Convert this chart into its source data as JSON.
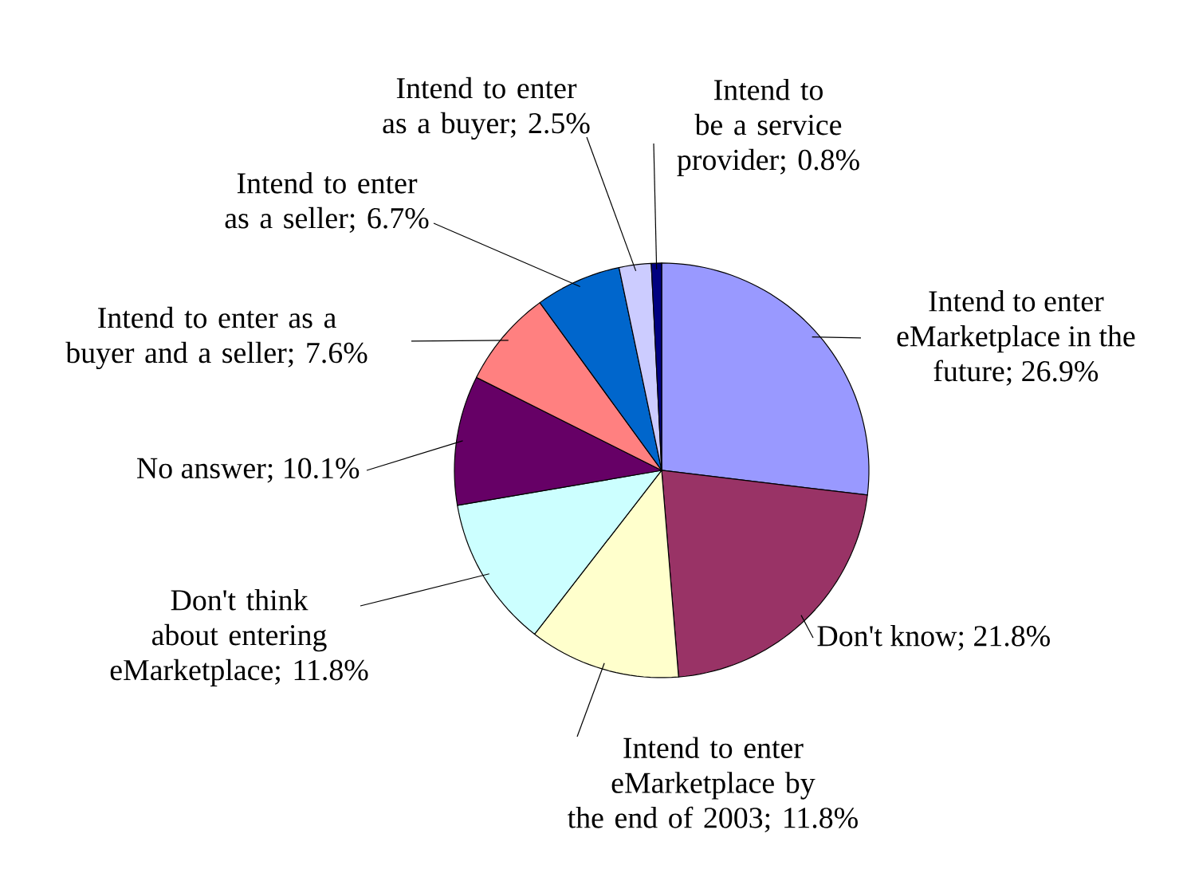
{
  "chart_data": {
    "type": "pie",
    "categories": [
      "Intend to enter eMarketplace in the future; 26.9%",
      "Don't know; 21.8%",
      "Intend to enter eMarketplace by the end of 2003; 11.8%",
      "Don't think about entering eMarketplace; 11.8%",
      "No answer; 10.1%",
      "Intend to enter as a buyer and a seller; 7.6%",
      "Intend to enter as a seller; 6.7%",
      "Intend to enter as a buyer; 2.5%",
      "Intend to be a service provider; 0.8%"
    ],
    "values": [
      26.9,
      21.8,
      11.8,
      11.8,
      10.1,
      7.6,
      6.7,
      2.5,
      0.8
    ],
    "colors": [
      "#9999ff",
      "#993366",
      "#ffffcc",
      "#ccffff",
      "#660066",
      "#ff8080",
      "#0066cc",
      "#ccccff",
      "#000080"
    ]
  }
}
